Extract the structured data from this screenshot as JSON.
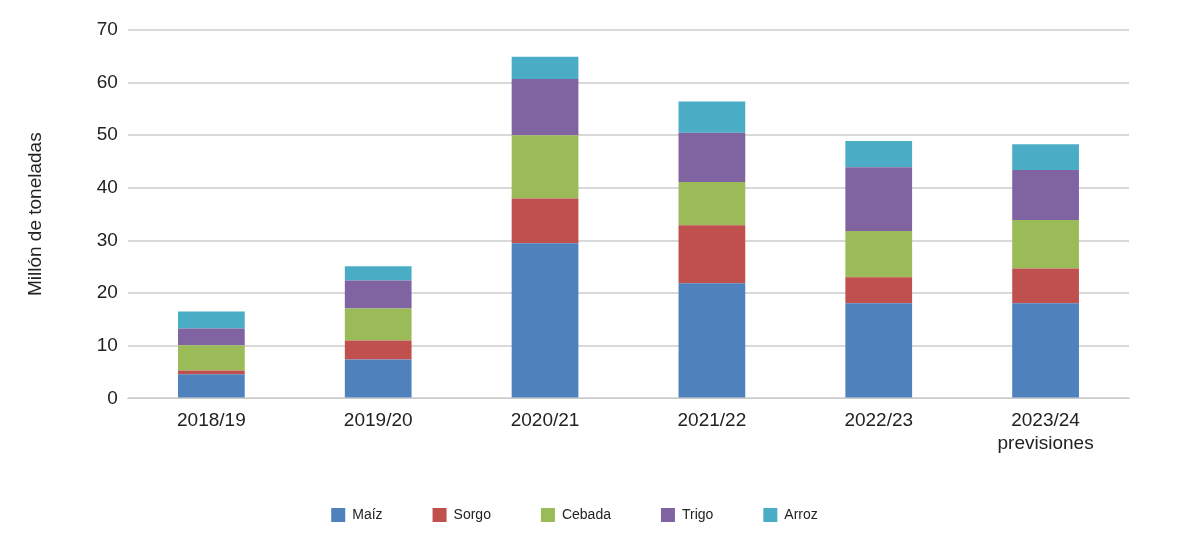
{
  "chart_data": {
    "type": "bar",
    "y_label": "Millón de toneladas",
    "categories": [
      "2018/19",
      "2019/20",
      "2020/21",
      "2021/22",
      "2022/23",
      [
        "2023/24",
        "previsiones"
      ]
    ],
    "series": [
      {
        "name": "Maíz",
        "color": "#4f81bd",
        "values": [
          4.6,
          7.4,
          29.5,
          21.9,
          18.1,
          18.1
        ]
      },
      {
        "name": "Sorgo",
        "color": "#c0504d",
        "values": [
          0.7,
          3.6,
          8.5,
          11.0,
          4.9,
          6.6
        ]
      },
      {
        "name": "Cebada",
        "color": "#9bbb59",
        "values": [
          4.8,
          6.1,
          12.0,
          8.2,
          8.8,
          9.2
        ]
      },
      {
        "name": "Trigo",
        "color": "#8064a2",
        "values": [
          3.2,
          5.3,
          10.7,
          9.4,
          12.1,
          9.5
        ]
      },
      {
        "name": "Arroz",
        "color": "#4bacc6",
        "values": [
          3.2,
          2.7,
          4.2,
          5.9,
          5.0,
          4.9
        ]
      }
    ],
    "stacked": true,
    "ylim": [
      0,
      70
    ],
    "yticks": [
      0,
      10,
      20,
      30,
      40,
      50,
      60,
      70
    ],
    "grid": true,
    "legend": "bottom"
  }
}
